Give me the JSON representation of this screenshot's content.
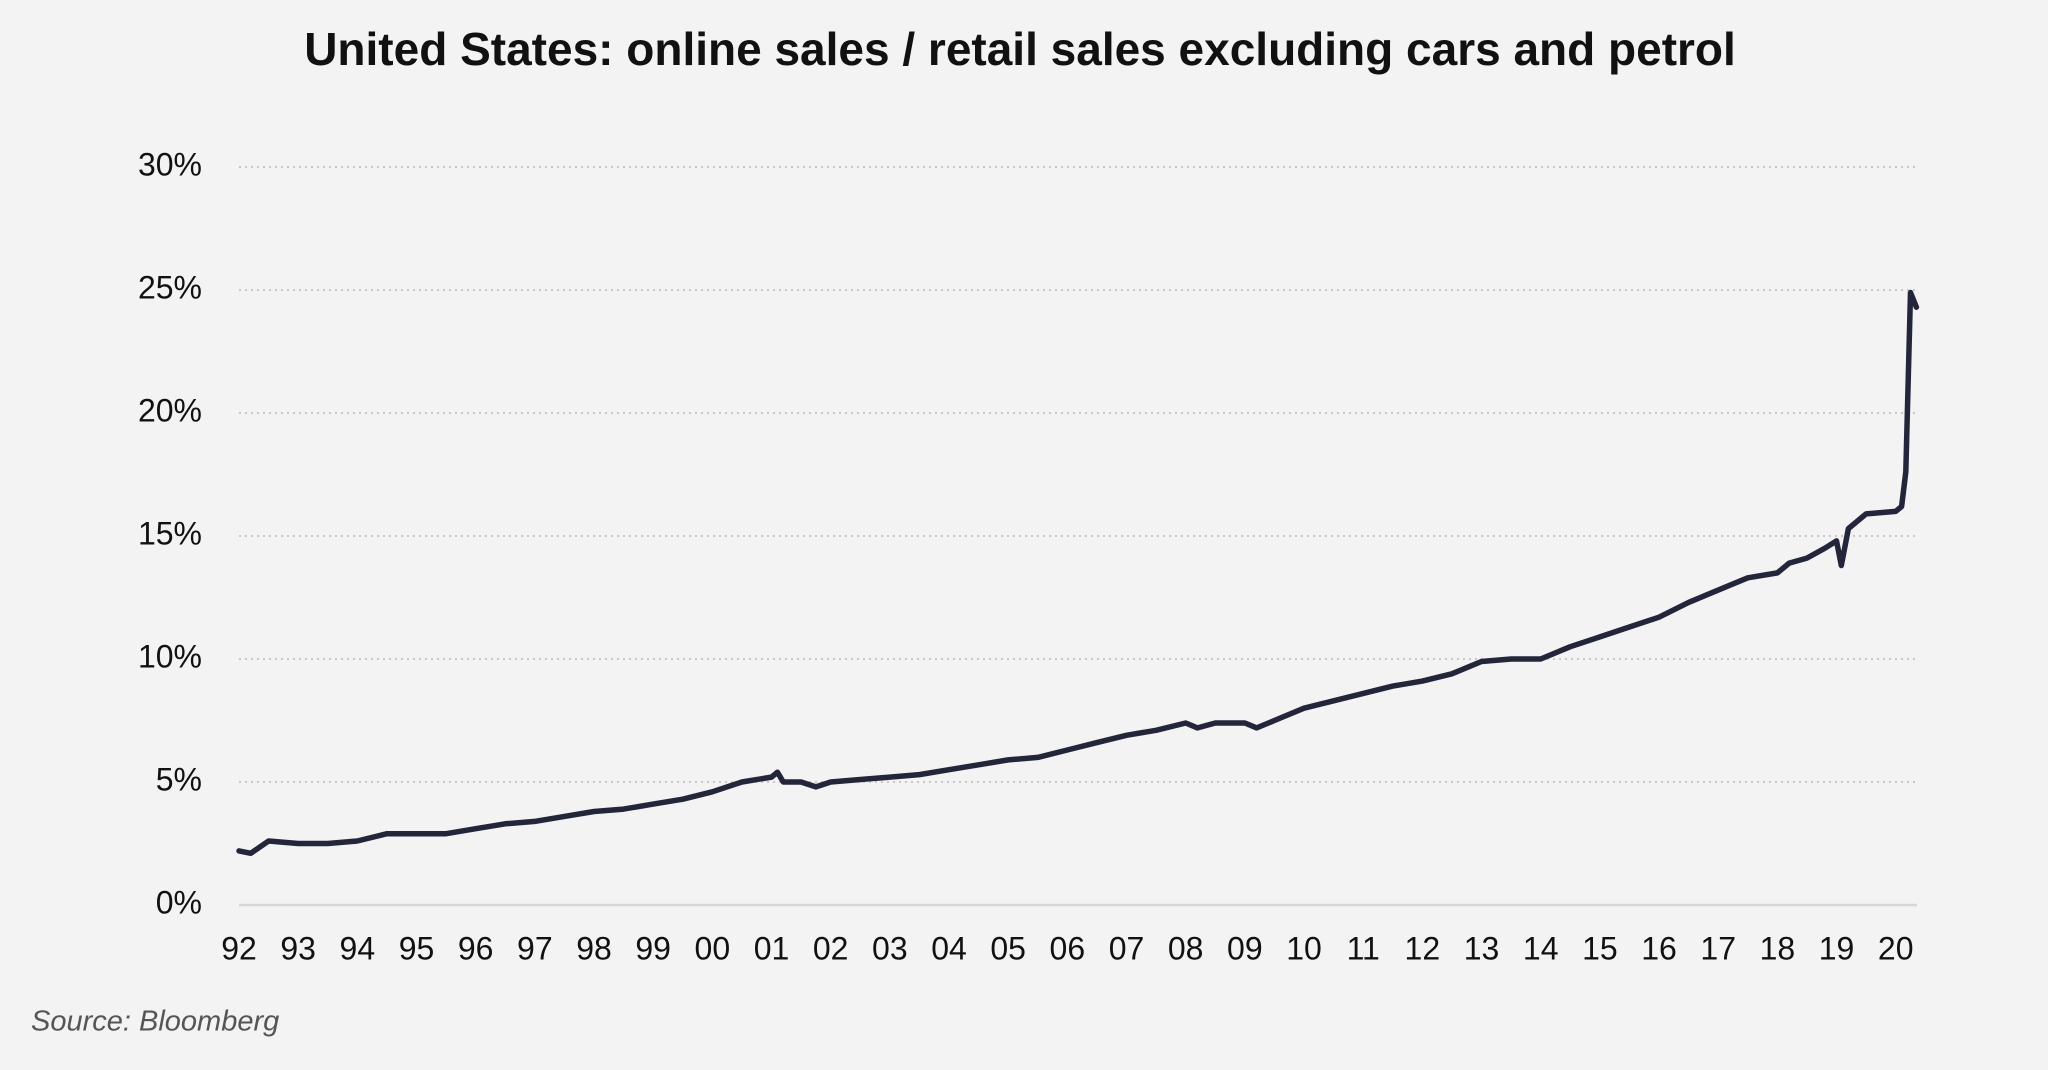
{
  "chart_data": {
    "type": "line",
    "title": "United States: online sales / retail sales excluding cars and petrol",
    "source": "Source: Bloomberg",
    "color": "#23263a",
    "grid": true,
    "x": [
      1992.0,
      1992.2,
      1992.5,
      1993.0,
      1993.5,
      1994.0,
      1994.5,
      1995.0,
      1995.5,
      1996.0,
      1996.5,
      1997.0,
      1997.5,
      1998.0,
      1998.5,
      1999.0,
      1999.5,
      2000.0,
      2000.5,
      2001.0,
      2001.1,
      2001.2,
      2001.5,
      2001.75,
      2002.0,
      2002.5,
      2003.0,
      2003.5,
      2004.0,
      2004.5,
      2005.0,
      2005.5,
      2006.0,
      2006.5,
      2007.0,
      2007.5,
      2008.0,
      2008.2,
      2008.5,
      2009.0,
      2009.2,
      2009.5,
      2010.0,
      2010.5,
      2011.0,
      2011.5,
      2012.0,
      2012.5,
      2013.0,
      2013.5,
      2014.0,
      2014.5,
      2015.0,
      2015.5,
      2016.0,
      2016.5,
      2017.0,
      2017.5,
      2018.0,
      2018.2,
      2018.5,
      2018.8,
      2019.0,
      2019.08,
      2019.2,
      2019.5,
      2020.0,
      2020.1,
      2020.17,
      2020.25,
      2020.35
    ],
    "values": [
      2.2,
      2.1,
      2.6,
      2.5,
      2.5,
      2.6,
      2.9,
      2.9,
      2.9,
      3.1,
      3.3,
      3.4,
      3.6,
      3.8,
      3.9,
      4.1,
      4.3,
      4.6,
      5.0,
      5.2,
      5.4,
      5.0,
      5.0,
      4.8,
      5.0,
      5.1,
      5.2,
      5.3,
      5.5,
      5.7,
      5.9,
      6.0,
      6.3,
      6.6,
      6.9,
      7.1,
      7.4,
      7.2,
      7.4,
      7.4,
      7.2,
      7.5,
      8.0,
      8.3,
      8.6,
      8.9,
      9.1,
      9.4,
      9.9,
      10.0,
      10.0,
      10.5,
      10.9,
      11.3,
      11.7,
      12.3,
      12.8,
      13.3,
      13.5,
      13.9,
      14.1,
      14.5,
      14.8,
      13.8,
      15.3,
      15.9,
      16.0,
      16.2,
      17.6,
      24.9,
      24.3
    ],
    "xlim": [
      1992,
      2020.36
    ],
    "xticks": [
      {
        "value": 1992,
        "label": "92"
      },
      {
        "value": 1993,
        "label": "93"
      },
      {
        "value": 1994,
        "label": "94"
      },
      {
        "value": 1995,
        "label": "95"
      },
      {
        "value": 1996,
        "label": "96"
      },
      {
        "value": 1997,
        "label": "97"
      },
      {
        "value": 1998,
        "label": "98"
      },
      {
        "value": 1999,
        "label": "99"
      },
      {
        "value": 2000,
        "label": "00"
      },
      {
        "value": 2001,
        "label": "01"
      },
      {
        "value": 2002,
        "label": "02"
      },
      {
        "value": 2003,
        "label": "03"
      },
      {
        "value": 2004,
        "label": "04"
      },
      {
        "value": 2005,
        "label": "05"
      },
      {
        "value": 2006,
        "label": "06"
      },
      {
        "value": 2007,
        "label": "07"
      },
      {
        "value": 2008,
        "label": "08"
      },
      {
        "value": 2009,
        "label": "09"
      },
      {
        "value": 2010,
        "label": "10"
      },
      {
        "value": 2011,
        "label": "11"
      },
      {
        "value": 2012,
        "label": "12"
      },
      {
        "value": 2013,
        "label": "13"
      },
      {
        "value": 2014,
        "label": "14"
      },
      {
        "value": 2015,
        "label": "15"
      },
      {
        "value": 2016,
        "label": "16"
      },
      {
        "value": 2017,
        "label": "17"
      },
      {
        "value": 2018,
        "label": "18"
      },
      {
        "value": 2019,
        "label": "19"
      },
      {
        "value": 2020,
        "label": "20"
      }
    ],
    "ylim": [
      0,
      30
    ],
    "yticks": [
      {
        "value": 0,
        "label": "0%"
      },
      {
        "value": 5,
        "label": "5%"
      },
      {
        "value": 10,
        "label": "10%"
      },
      {
        "value": 15,
        "label": "15%"
      },
      {
        "value": 20,
        "label": "20%"
      },
      {
        "value": 25,
        "label": "25%"
      },
      {
        "value": 30,
        "label": "30%"
      }
    ]
  }
}
